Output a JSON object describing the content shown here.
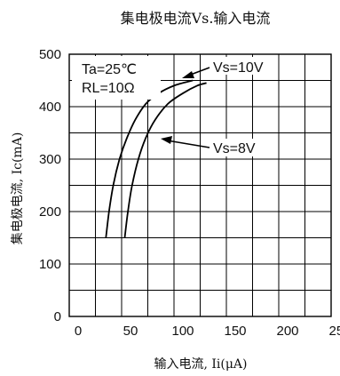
{
  "chart_data": {
    "type": "line",
    "title": "集电极电流Vs.输入电流",
    "xlabel": "输入电流, Ii(μA)",
    "ylabel": "集电极电流, Ic(mA)",
    "xlim": [
      0,
      250
    ],
    "ylim": [
      0,
      500
    ],
    "xticks": [
      0,
      50,
      100,
      150,
      200,
      250
    ],
    "yticks": [
      0,
      100,
      200,
      300,
      400,
      500
    ],
    "x_tick_labels": [
      "0",
      "50",
      "100",
      "150",
      "200",
      "250"
    ],
    "y_tick_labels": [
      "0",
      "100",
      "200",
      "300",
      "400",
      "500"
    ],
    "grid": true,
    "series": [
      {
        "name": "Vs=10V",
        "x": [
          35,
          38,
          42,
          48,
          55,
          63,
          73,
          85,
          100,
          118
        ],
        "y": [
          150,
          200,
          250,
          300,
          340,
          375,
          405,
          425,
          440,
          450
        ]
      },
      {
        "name": "Vs=8V",
        "x": [
          53,
          56,
          60,
          66,
          73,
          82,
          94,
          108,
          122,
          131
        ],
        "y": [
          150,
          200,
          250,
          300,
          340,
          375,
          405,
          425,
          440,
          445
        ]
      }
    ],
    "annotations": {
      "condition_temp": "Ta=25℃",
      "condition_rl": "RL=10Ω"
    }
  }
}
